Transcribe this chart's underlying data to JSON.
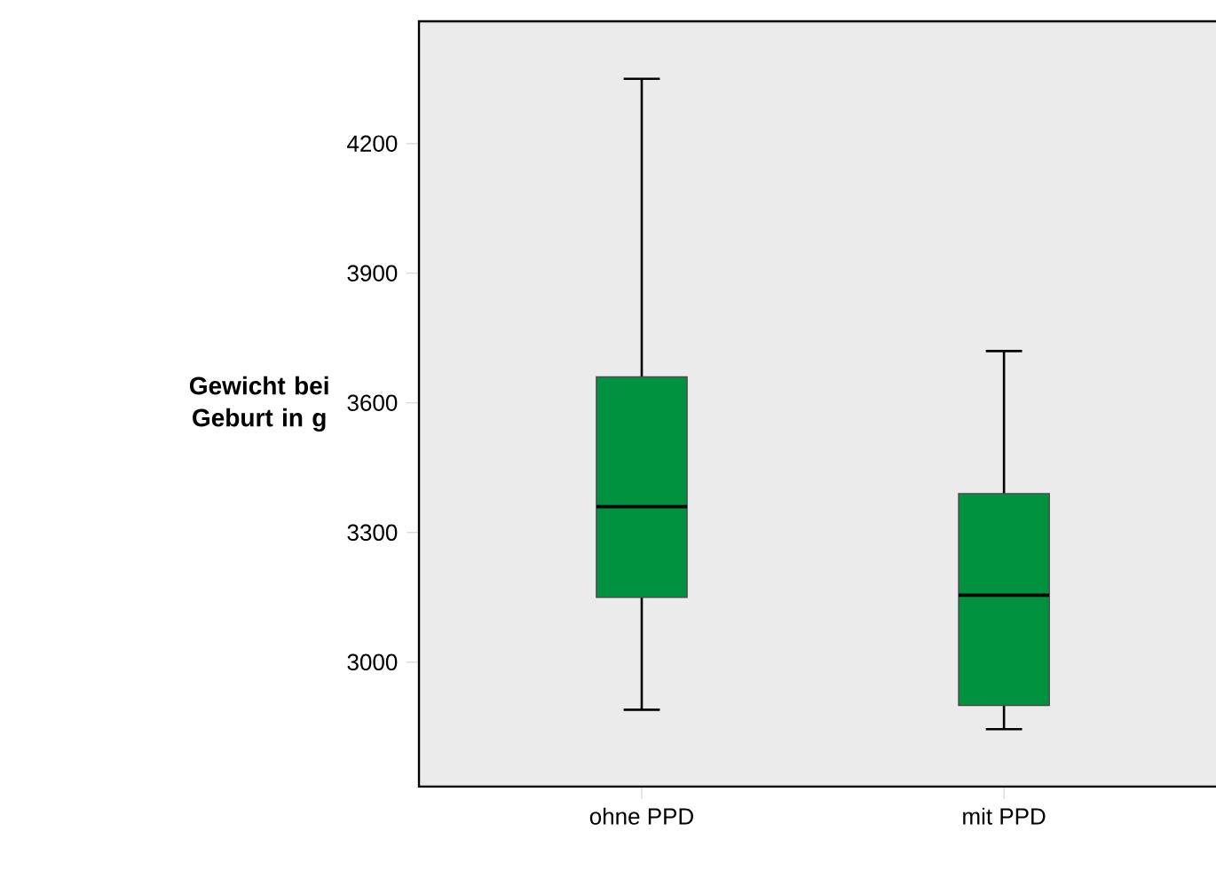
{
  "chart_data": {
    "type": "box",
    "ylabel": "Gewicht bei Geburt in g",
    "categories": [
      "ohne PPD",
      "mit PPD"
    ],
    "color": "#00923f",
    "boxes": [
      {
        "low": 2890,
        "q1": 3150,
        "median": 3360,
        "q3": 3660,
        "high": 4350
      },
      {
        "low": 2845,
        "q1": 2900,
        "median": 3155,
        "q3": 3390,
        "high": 3720
      }
    ],
    "ylim": [
      2712,
      4483
    ],
    "yticks": [
      3000,
      3300,
      3600,
      3900,
      4200
    ],
    "grid": false
  }
}
